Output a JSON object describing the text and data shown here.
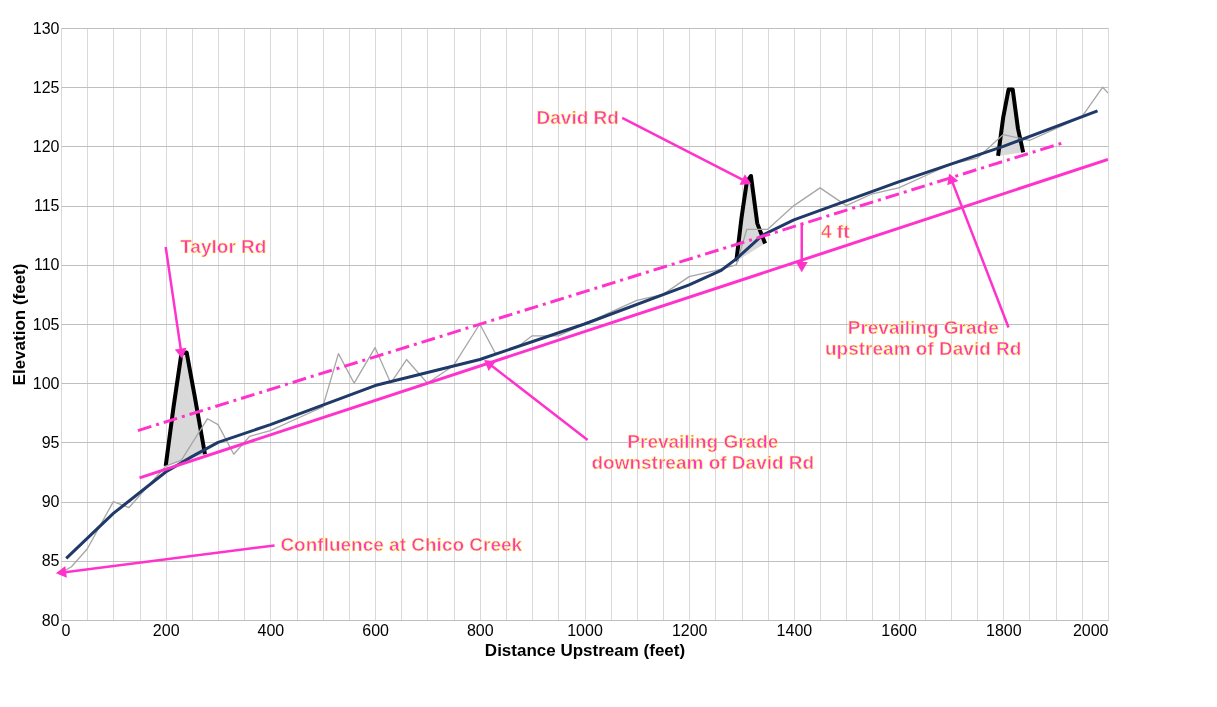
{
  "chart_data": {
    "type": "line",
    "xlabel": "Distance Upstream (feet)",
    "ylabel": "Elevation (feet)",
    "xlim": [
      0,
      2000
    ],
    "ylim": [
      80,
      130
    ],
    "xticks": [
      0,
      {
        "value": 50,
        "label": null
      },
      {
        "value": 100,
        "label": null
      },
      {
        "value": 150,
        "label": null
      },
      200,
      {
        "value": 250,
        "label": null
      },
      {
        "value": 300,
        "label": null
      },
      {
        "value": 350,
        "label": null
      },
      400,
      {
        "value": 450,
        "label": null
      },
      {
        "value": 500,
        "label": null
      },
      {
        "value": 550,
        "label": null
      },
      600,
      {
        "value": 650,
        "label": null
      },
      {
        "value": 700,
        "label": null
      },
      {
        "value": 750,
        "label": null
      },
      800,
      {
        "value": 850,
        "label": null
      },
      {
        "value": 900,
        "label": null
      },
      {
        "value": 950,
        "label": null
      },
      1000,
      {
        "value": 1050,
        "label": null
      },
      {
        "value": 1100,
        "label": null
      },
      {
        "value": 1150,
        "label": null
      },
      1200,
      {
        "value": 1250,
        "label": null
      },
      {
        "value": 1300,
        "label": null
      },
      {
        "value": 1350,
        "label": null
      },
      1400,
      {
        "value": 1450,
        "label": null
      },
      {
        "value": 1500,
        "label": null
      },
      {
        "value": 1550,
        "label": null
      },
      1600,
      {
        "value": 1650,
        "label": null
      },
      {
        "value": 1700,
        "label": null
      },
      {
        "value": 1750,
        "label": null
      },
      1800,
      {
        "value": 1850,
        "label": null
      },
      {
        "value": 1900,
        "label": null
      },
      {
        "value": 1950,
        "label": null
      },
      2000
    ],
    "yticks": [
      80,
      85,
      90,
      95,
      100,
      105,
      110,
      115,
      120,
      125,
      130
    ],
    "grid": true,
    "marker": "none",
    "series": [
      {
        "color": "#a6a6a6",
        "x": [
          0,
          20,
          50,
          100,
          130,
          160,
          200,
          230,
          280,
          300,
          330,
          360,
          400,
          450,
          500,
          530,
          560,
          600,
          630,
          660,
          700,
          750,
          800,
          830,
          870,
          900,
          950,
          1000,
          1050,
          1100,
          1150,
          1200,
          1250,
          1290,
          1310,
          1350,
          1400,
          1450,
          1500,
          1550,
          1600,
          1650,
          1700,
          1750,
          1800,
          1850,
          1900,
          1950,
          1990,
          2000
        ],
        "values": [
          84,
          84.5,
          86,
          90,
          89.5,
          91,
          93,
          93.5,
          97,
          96.5,
          94,
          95.5,
          96,
          97,
          98,
          102.5,
          100,
          103,
          100,
          102,
          100,
          101.5,
          105,
          102.5,
          103,
          104,
          104,
          105,
          106,
          107,
          107.5,
          109,
          109.5,
          110,
          113,
          113,
          115,
          116.5,
          115,
          116,
          116.5,
          117.5,
          118.5,
          119,
          121,
          120.5,
          121.5,
          122.5,
          125,
          124.5
        ]
      },
      {
        "color": "#1f3a68",
        "x": [
          10,
          100,
          200,
          250,
          300,
          400,
          600,
          800,
          1000,
          1200,
          1260,
          1290,
          1340,
          1400,
          1600,
          1800,
          1980
        ],
        "values": [
          85.2,
          89,
          92.5,
          93.8,
          95,
          96.5,
          99.8,
          102,
          105,
          108.3,
          109.5,
          110.5,
          112.5,
          113.8,
          117,
          120,
          123
        ]
      },
      {
        "color": "#ff33cc",
        "x": [
          150,
          2000
        ],
        "values": [
          92,
          118.9
        ]
      },
      {
        "color": "#ff33cc",
        "line_style": "dashed",
        "x": [
          147,
          1914
        ],
        "values": [
          96,
          120.3
        ]
      },
      {
        "type": "area",
        "color": "#000000",
        "x": [
          200,
          215,
          230,
          240,
          255,
          275
        ],
        "values": [
          93,
          98,
          102.5,
          102.6,
          99,
          94
        ]
      },
      {
        "type": "area",
        "color": "#000000",
        "x": [
          1290,
          1300,
          1310,
          1318,
          1330,
          1345
        ],
        "values": [
          110.3,
          114,
          117,
          117.5,
          113.5,
          111.8
        ]
      },
      {
        "type": "area",
        "color": "#000000",
        "x": [
          1790,
          1800,
          1810,
          1818,
          1828,
          1838
        ],
        "values": [
          119.2,
          122.5,
          124.8,
          124.8,
          121.5,
          119.5
        ]
      }
    ],
    "annotations": [
      {
        "text": "Taylor Rd",
        "x": 230,
        "y": 102.5
      },
      {
        "text": "David Rd",
        "x": 1310,
        "y": 117
      },
      {
        "text": "4 ft",
        "x": 1415,
        "y": 109.8
      },
      {
        "text": "Prevailing Grade\nupstream of David Rd",
        "x": 1700,
        "y": 117.3
      },
      {
        "text": "Prevailing Grade\ndownstream of David Rd",
        "x": 816,
        "y": 101.7
      },
      {
        "text": "Confluence at Chico Creek",
        "x": 0,
        "y": 84
      }
    ]
  }
}
